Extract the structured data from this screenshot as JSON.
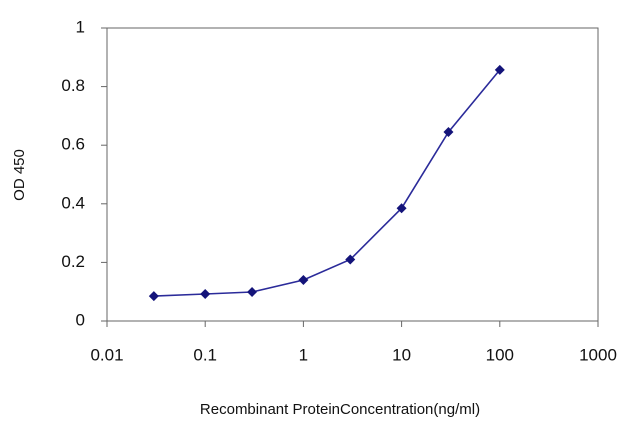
{
  "chart_data": {
    "type": "line",
    "x_label": "Recombinant ProteinConcentration(ng/ml)",
    "y_label": "OD 450",
    "x": [
      0.03,
      0.1,
      0.3,
      1,
      3,
      10,
      30,
      100
    ],
    "values": [
      0.085,
      0.092,
      0.099,
      0.14,
      0.21,
      0.385,
      0.645,
      0.857
    ],
    "color": "#2b2b9a",
    "marker_color": "#14147a",
    "xscale": "log",
    "xlim": [
      0.01,
      1000
    ],
    "xticks": [
      0.01,
      0.1,
      1,
      10,
      100,
      1000
    ],
    "ylim": [
      0,
      1
    ],
    "yticks": [
      0,
      0.2,
      0.4,
      0.6,
      0.8,
      1
    ],
    "grid": false
  }
}
